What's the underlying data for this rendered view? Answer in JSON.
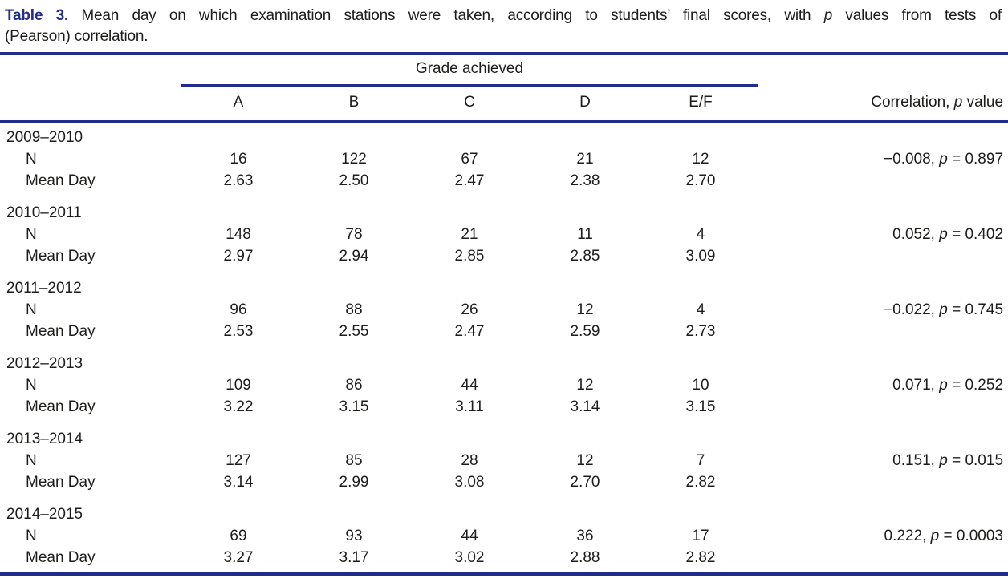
{
  "caption": {
    "label": "Table 3.",
    "line1": "Mean day on which examination stations were taken, according to students’ final scores, with p values from tests of",
    "line2": "(Pearson) correlation."
  },
  "header": {
    "spanner": "Grade achieved",
    "columns": [
      "A",
      "B",
      "C",
      "D",
      "E/F"
    ],
    "correlation_label": "Correlation, p value"
  },
  "labels": {
    "n": "N",
    "mean_day": "Mean Day"
  },
  "years": [
    {
      "year": "2009–2010",
      "n": [
        "16",
        "122",
        "67",
        "21",
        "12"
      ],
      "mean_day": [
        "2.63",
        "2.50",
        "2.47",
        "2.38",
        "2.70"
      ],
      "correlation": "−0.008, p = 0.897"
    },
    {
      "year": "2010–2011",
      "n": [
        "148",
        "78",
        "21",
        "11",
        "4"
      ],
      "mean_day": [
        "2.97",
        "2.94",
        "2.85",
        "2.85",
        "3.09"
      ],
      "correlation": "0.052, p = 0.402"
    },
    {
      "year": "2011–2012",
      "n": [
        "96",
        "88",
        "26",
        "12",
        "4"
      ],
      "mean_day": [
        "2.53",
        "2.55",
        "2.47",
        "2.59",
        "2.73"
      ],
      "correlation": "−0.022, p = 0.745"
    },
    {
      "year": "2012–2013",
      "n": [
        "109",
        "86",
        "44",
        "12",
        "10"
      ],
      "mean_day": [
        "3.22",
        "3.15",
        "3.11",
        "3.14",
        "3.15"
      ],
      "correlation": "0.071, p = 0.252"
    },
    {
      "year": "2013–2014",
      "n": [
        "127",
        "85",
        "28",
        "12",
        "7"
      ],
      "mean_day": [
        "3.14",
        "2.99",
        "3.08",
        "2.70",
        "2.82"
      ],
      "correlation": "0.151, p = 0.015"
    },
    {
      "year": "2014–2015",
      "n": [
        "69",
        "93",
        "44",
        "36",
        "17"
      ],
      "mean_day": [
        "3.27",
        "3.17",
        "3.02",
        "2.88",
        "2.82"
      ],
      "correlation": "0.222, p = 0.0003"
    }
  ],
  "colors": {
    "rule": "#212c8d",
    "caption_label": "#212c8d",
    "text": "#1d1d1b"
  }
}
